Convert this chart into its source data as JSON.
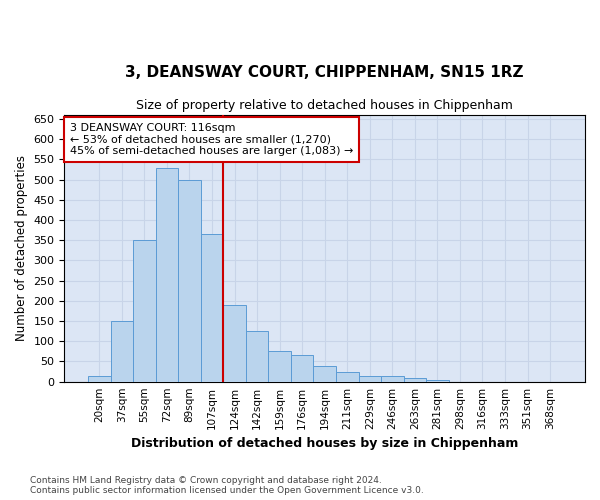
{
  "title": "3, DEANSWAY COURT, CHIPPENHAM, SN15 1RZ",
  "subtitle": "Size of property relative to detached houses in Chippenham",
  "xlabel": "Distribution of detached houses by size in Chippenham",
  "ylabel": "Number of detached properties",
  "categories": [
    "20sqm",
    "37sqm",
    "55sqm",
    "72sqm",
    "89sqm",
    "107sqm",
    "124sqm",
    "142sqm",
    "159sqm",
    "176sqm",
    "194sqm",
    "211sqm",
    "229sqm",
    "246sqm",
    "263sqm",
    "281sqm",
    "298sqm",
    "316sqm",
    "333sqm",
    "351sqm",
    "368sqm"
  ],
  "values": [
    15,
    150,
    350,
    530,
    500,
    365,
    190,
    125,
    75,
    65,
    40,
    25,
    15,
    15,
    10,
    5,
    0,
    0,
    0,
    0,
    0
  ],
  "bar_color": "#bad4ed",
  "bar_edge_color": "#5b9bd5",
  "vline_x_index": 6,
  "vline_color": "#cc0000",
  "annotation_text": "3 DEANSWAY COURT: 116sqm\n← 53% of detached houses are smaller (1,270)\n45% of semi-detached houses are larger (1,083) →",
  "annotation_box_color": "#cc0000",
  "grid_color": "#c8d4e8",
  "background_color": "#dce6f5",
  "footnote": "Contains HM Land Registry data © Crown copyright and database right 2024.\nContains public sector information licensed under the Open Government Licence v3.0.",
  "ylim": [
    0,
    660
  ],
  "yticks": [
    0,
    50,
    100,
    150,
    200,
    250,
    300,
    350,
    400,
    450,
    500,
    550,
    600,
    650
  ]
}
